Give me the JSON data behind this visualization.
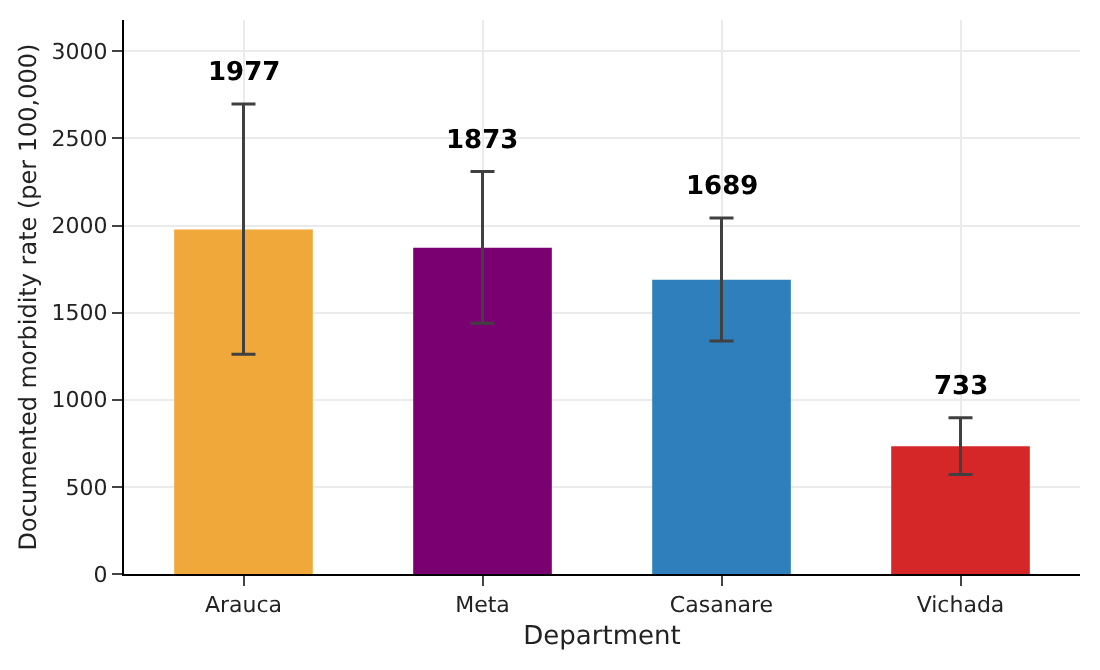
{
  "chart_data": {
    "type": "bar",
    "xlabel": "Department",
    "ylabel": "Documented morbidity rate (per 100,000)",
    "categories": [
      "Arauca",
      "Meta",
      "Casanare",
      "Vichada"
    ],
    "values": [
      1977,
      1873,
      1689,
      733
    ],
    "colors": [
      "#f0a83a",
      "#7a0072",
      "#2e7fbb",
      "#d62728"
    ],
    "errors": [
      [
        1262,
        2698
      ],
      [
        1440,
        2310
      ],
      [
        1337,
        2044
      ],
      [
        571,
        897
      ]
    ],
    "annotations": [
      {
        "text": "1977",
        "x": "Arauca",
        "y": 2698
      },
      {
        "text": "1873",
        "x": "Meta",
        "y": 2310
      },
      {
        "text": "1689",
        "x": "Casanare",
        "y": 2044
      },
      {
        "text": "733",
        "x": "Vichada",
        "y": 897
      }
    ],
    "ylim": [
      0,
      3180
    ],
    "yticks": [
      0,
      500,
      1000,
      1500,
      2000,
      2500,
      3000
    ],
    "grid": true,
    "legend": false
  }
}
